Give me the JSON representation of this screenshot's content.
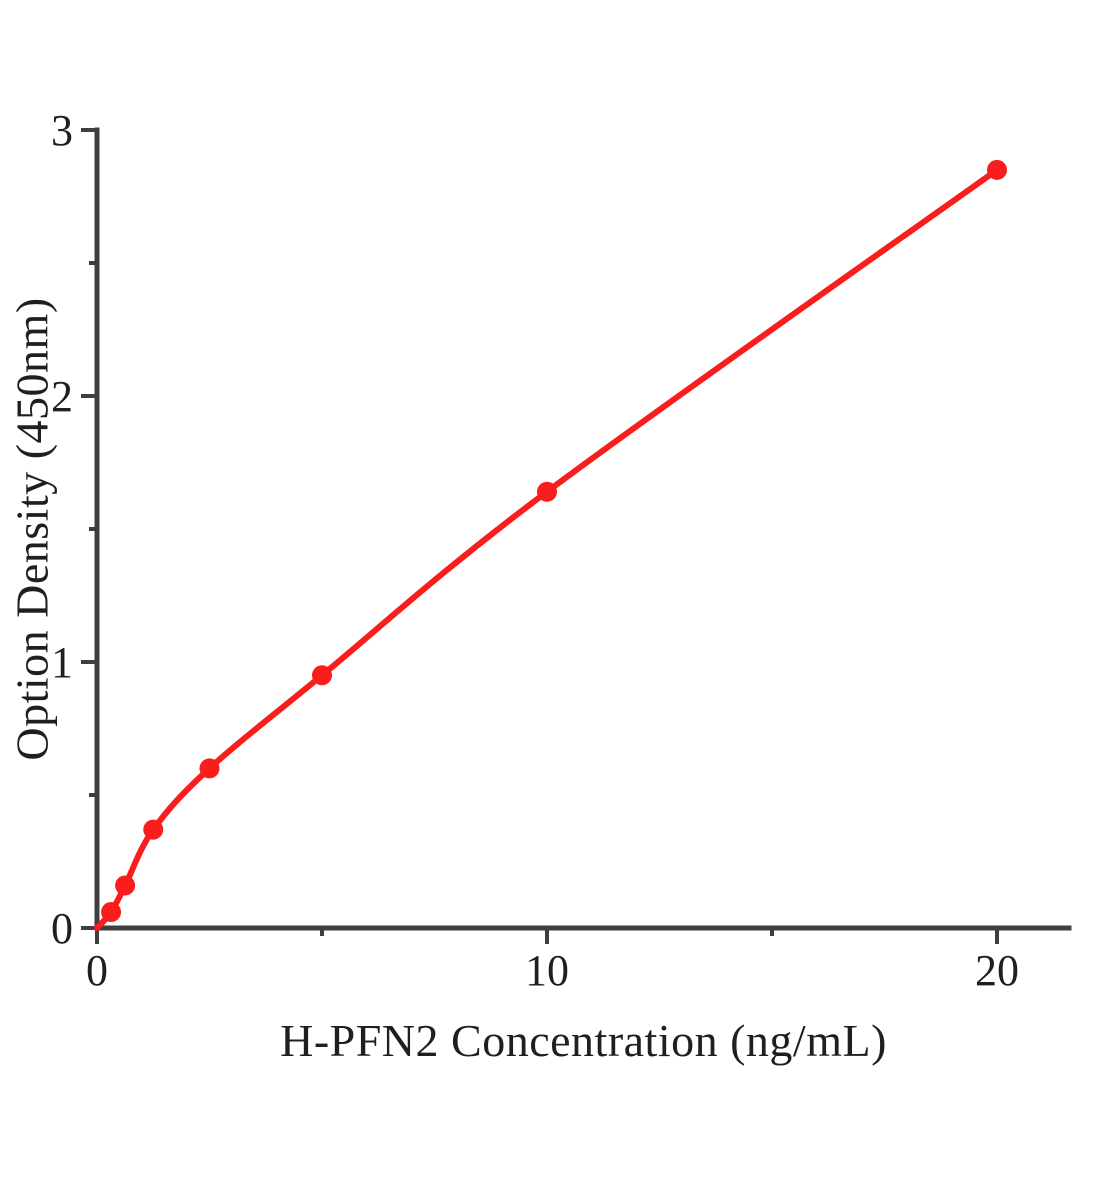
{
  "page": {
    "background_color": "#ffffff"
  },
  "chart_data": {
    "type": "scatter",
    "title": "",
    "xlabel": "H-PFN2 Concentration (ng/mL)",
    "ylabel": "Option Density (450nm)",
    "points": [
      {
        "x": 0.3125,
        "y": 0.06
      },
      {
        "x": 0.625,
        "y": 0.16
      },
      {
        "x": 1.25,
        "y": 0.37
      },
      {
        "x": 2.5,
        "y": 0.6
      },
      {
        "x": 5,
        "y": 0.95
      },
      {
        "x": 10,
        "y": 1.64
      },
      {
        "x": 20,
        "y": 2.85
      }
    ],
    "curve_origin": {
      "x": 0,
      "y": 0
    },
    "xlim": [
      0,
      21.6
    ],
    "ylim": [
      0,
      3
    ],
    "x_major_ticks": [
      0,
      10,
      20
    ],
    "x_minor_ticks": [
      5,
      15
    ],
    "y_major_ticks": [
      0,
      1,
      2,
      3
    ],
    "y_minor_ticks": [
      0.5,
      1.5,
      2.5
    ],
    "grid": false,
    "legend": null,
    "colors": {
      "line": "#f91d1d",
      "marker": "#f91d1d",
      "axis": "#3f3f3f",
      "text": "#1f1f1f"
    }
  }
}
